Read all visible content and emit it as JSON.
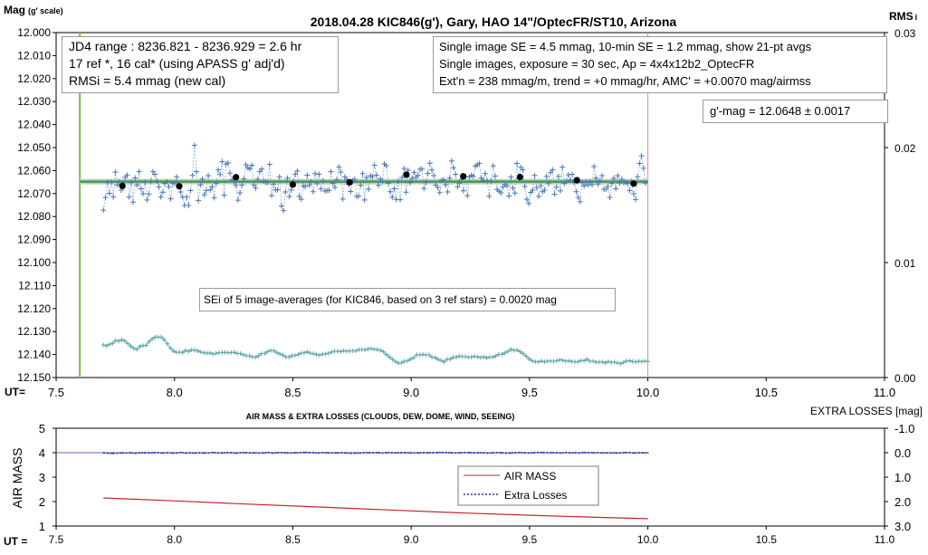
{
  "chart_data": [
    {
      "type": "scatter",
      "title": "2018.04.28  KIC846(g'),  Gary, HAO 14\"/OptecFR/ST10,  Arizona",
      "ylabel": "Mag",
      "ylabel_unit": "(g' scale)",
      "xlabel": "UT=",
      "y2label": "RMS",
      "y2label_suffix": "i",
      "xlim": [
        7.5,
        11.0
      ],
      "ylim": [
        12.15,
        12.0
      ],
      "y_inverted": true,
      "y2lim": [
        0.0,
        0.03
      ],
      "x_ticks": [
        "7.5",
        "8.0",
        "8.5",
        "9.0",
        "9.5",
        "10.0",
        "10.5",
        "11.0"
      ],
      "y_ticks": [
        "12.000",
        "12.010",
        "12.020",
        "12.030",
        "12.040",
        "12.050",
        "12.060",
        "12.070",
        "12.080",
        "12.090",
        "12.100",
        "12.110",
        "12.120",
        "12.130",
        "12.140",
        "12.150"
      ],
      "y2_ticks": [
        "0.03",
        "0.02",
        "0.01",
        "0.00"
      ],
      "grid": false,
      "colors": {
        "single": "#4a77b4",
        "single_line": "#8fb0d8",
        "avg": "#000000",
        "fit": "#3e9e4f",
        "fit_band": "#c8c8c8",
        "rms": "#5fa7a7",
        "start_line": "#7cc242",
        "end_line": "#f08a8a"
      },
      "start_marker_x": 7.6,
      "end_marker_x": 10.0,
      "fit_mag": 12.0648,
      "series": [
        {
          "style": "single",
          "x_start": 7.7,
          "x_end": 9.99,
          "count": 276,
          "values": [
            12.0772,
            12.0717,
            12.0652,
            12.0699,
            12.0651,
            12.0715,
            12.0607,
            12.0663,
            12.0649,
            12.0685,
            12.0653,
            12.0629,
            12.0619,
            12.0715,
            12.0652,
            12.0737,
            12.0632,
            12.0663,
            12.0605,
            12.0679,
            12.0701,
            12.065,
            12.0728,
            12.0702,
            12.0647,
            12.0605,
            12.0616,
            12.0646,
            12.0671,
            12.0715,
            12.0694,
            12.0656,
            12.0648,
            12.0671,
            12.0723,
            12.0656,
            12.0654,
            12.0627,
            12.0666,
            12.0693,
            12.0715,
            12.0752,
            12.0715,
            12.0752,
            12.0687,
            12.0621,
            12.049,
            12.0605,
            12.0731,
            12.0662,
            12.0637,
            12.0705,
            12.0687,
            12.0622,
            12.0684,
            12.067,
            12.0718,
            12.0656,
            12.0597,
            12.0617,
            12.0561,
            12.0707,
            12.0572,
            12.0567,
            12.0611,
            12.064,
            12.0649,
            12.0665,
            12.0729,
            12.0697,
            12.0663,
            12.0636,
            12.0575,
            12.0588,
            12.0593,
            12.0577,
            12.0663,
            12.0676,
            12.0638,
            12.0605,
            12.0593,
            12.0645,
            12.0651,
            12.0652,
            12.0573,
            12.0709,
            12.0659,
            12.0684,
            12.0683,
            12.0627,
            12.0754,
            12.0774,
            12.0693,
            12.0633,
            12.0713,
            12.0684,
            12.0647,
            12.0616,
            12.0602,
            12.0712,
            12.0725,
            12.0667,
            12.067,
            12.062,
            12.0664,
            12.0649,
            12.0692,
            12.0613,
            12.0657,
            12.0616,
            12.068,
            12.0644,
            12.0689,
            12.0687,
            12.0686,
            12.0605,
            12.0655,
            12.0673,
            12.064,
            12.0584,
            12.0607,
            12.0724,
            12.0627,
            12.0639,
            12.0661,
            12.0691,
            12.0643,
            12.0638,
            12.0712,
            12.0711,
            12.0664,
            12.0613,
            12.0728,
            12.063,
            12.0681,
            12.0622,
            12.0627,
            12.0577,
            12.062,
            12.0664,
            12.0636,
            12.0649,
            12.0571,
            12.0579,
            12.0655,
            12.0692,
            12.0716,
            12.0679,
            12.0726,
            12.0646,
            12.0727,
            12.063,
            12.0591,
            12.0694,
            12.0599,
            12.0653,
            12.0634,
            12.0608,
            12.0629,
            12.0621,
            12.0594,
            12.0594,
            12.0678,
            12.0652,
            12.0612,
            12.0568,
            12.0598,
            12.0622,
            12.0664,
            12.0673,
            12.0696,
            12.0642,
            12.064,
            12.0662,
            12.0693,
            12.0633,
            12.0558,
            12.0588,
            12.0616,
            12.0671,
            12.0655,
            12.0638,
            12.0688,
            12.0626,
            12.0709,
            12.0628,
            12.062,
            12.0625,
            12.0581,
            12.0576,
            12.0569,
            12.0632,
            12.0642,
            12.0613,
            12.0644,
            12.0712,
            12.0645,
            12.0579,
            12.0624,
            12.0682,
            12.069,
            12.0697,
            12.0671,
            12.066,
            12.0666,
            12.0711,
            12.0628,
            12.0676,
            12.0698,
            12.0569,
            12.0634,
            12.0586,
            12.0597,
            12.0669,
            12.0725,
            12.0743,
            12.0695,
            12.0685,
            12.0621,
            12.0674,
            12.0712,
            12.0666,
            12.0692,
            12.0685,
            12.0625,
            12.0657,
            12.0609,
            12.0597,
            12.0703,
            12.0672,
            12.0625,
            12.0688,
            12.0585,
            12.0656,
            12.0648,
            12.0618,
            12.0641,
            12.0616,
            12.0652,
            12.0692,
            12.0717,
            12.0735,
            12.0652,
            12.0667,
            12.0649,
            12.0663,
            12.0648,
            12.0662,
            12.0582,
            12.0633,
            12.0659,
            12.0644,
            12.0622,
            12.0681,
            12.0681,
            12.0669,
            12.0717,
            12.0655,
            12.0634,
            12.0679,
            12.0622,
            12.0654,
            12.0638,
            12.0653,
            12.0652,
            12.0656,
            12.0687,
            12.0647,
            12.0701,
            12.0726,
            12.0627,
            12.0569,
            12.0536,
            12.059,
            12.0654
          ]
        },
        {
          "style": "avg",
          "x": [
            7.78,
            8.02,
            8.26,
            8.5,
            8.74,
            8.98,
            9.22,
            9.46,
            9.7,
            9.94
          ],
          "values": [
            12.0667,
            12.0668,
            12.0629,
            12.0661,
            12.0651,
            12.0618,
            12.0625,
            12.0628,
            12.0642,
            12.0657
          ]
        },
        {
          "style": "rms",
          "x_start": 7.7,
          "x_end": 10.0,
          "count": 180,
          "values": [
            0.00283,
            0.00276,
            0.00288,
            0.00298,
            0.00323,
            0.00317,
            0.00329,
            0.00319,
            0.00296,
            0.00273,
            0.00254,
            0.00245,
            0.00272,
            0.00278,
            0.00281,
            0.00312,
            0.00336,
            0.00352,
            0.00351,
            0.00352,
            0.00329,
            0.00294,
            0.00257,
            0.00231,
            0.00219,
            0.0022,
            0.00218,
            0.00236,
            0.00227,
            0.00241,
            0.00238,
            0.00232,
            0.00221,
            0.00216,
            0.00212,
            0.00215,
            0.00205,
            0.0021,
            0.00217,
            0.00217,
            0.00219,
            0.00216,
            0.00218,
            0.00219,
            0.0021,
            0.00209,
            0.00198,
            0.0019,
            0.00189,
            0.0018,
            0.00177,
            0.0019,
            0.00209,
            0.00209,
            0.00225,
            0.00235,
            0.00234,
            0.00218,
            0.00205,
            0.00196,
            0.00178,
            0.00178,
            0.0019,
            0.00192,
            0.00199,
            0.00213,
            0.00215,
            0.00223,
            0.00212,
            0.00208,
            0.002,
            0.00195,
            0.00203,
            0.00206,
            0.00211,
            0.00221,
            0.00228,
            0.00229,
            0.00225,
            0.00234,
            0.00229,
            0.00231,
            0.00232,
            0.00231,
            0.00243,
            0.00244,
            0.00241,
            0.00248,
            0.00253,
            0.00246,
            0.00243,
            0.00237,
            0.00225,
            0.00201,
            0.00179,
            0.00158,
            0.0014,
            0.00125,
            0.00128,
            0.00142,
            0.00146,
            0.0016,
            0.00172,
            0.00198,
            0.00197,
            0.00201,
            0.00197,
            0.00198,
            0.00177,
            0.00174,
            0.00158,
            0.00149,
            0.00136,
            0.00158,
            0.0016,
            0.00175,
            0.00177,
            0.00186,
            0.00182,
            0.00182,
            0.00177,
            0.00178,
            0.00184,
            0.0018,
            0.00173,
            0.0018,
            0.0017,
            0.00178,
            0.00177,
            0.00188,
            0.00202,
            0.00201,
            0.00215,
            0.00227,
            0.00245,
            0.00235,
            0.00239,
            0.00224,
            0.00208,
            0.00184,
            0.00161,
            0.00144,
            0.00138,
            0.00136,
            0.00144,
            0.00137,
            0.00143,
            0.00144,
            0.00142,
            0.00145,
            0.00155,
            0.00151,
            0.00142,
            0.00146,
            0.0014,
            0.00137,
            0.00136,
            0.00149,
            0.00146,
            0.00159,
            0.00142,
            0.00143,
            0.00133,
            0.00136,
            0.00136,
            0.00127,
            0.0014,
            0.00132,
            0.00134,
            0.00127,
            0.00121,
            0.00132,
            0.00145,
            0.00146,
            0.00139,
            0.00136,
            0.00142,
            0.00139,
            0.00143,
            0.0014
          ]
        }
      ],
      "annotations": {
        "box1": [
          "JD4 range : 8236.821 - 8236.929 = 2.6  hr",
          "17 ref *, 16 cal* (using APASS g' adj'd)",
          "RMSi = 5.4 mmag (new cal)"
        ],
        "box2": [
          "Single image SE = 4.5 mmag, 10-min SE = 1.2 mmag, show  21-pt avgs",
          "Single images, exposure = 30 sec, Ap = 4x4x12b2_OptecFR",
          "Ext'n = 238 mmag/m, trend =  +0 mmag/hr, AMC' = +0.0070 mag/airmss"
        ],
        "box3": "g'-mag = 12.0648 ± 0.0017",
        "box4": "SEi of 5 image-averages (for KIC846, based on 3 ref stars) = 0.0020  mag"
      }
    },
    {
      "type": "line",
      "title": "AIR MASS & EXTRA LOSSES (CLOUDS, DEW, DOME, WIND, SEEING)",
      "ylabel": "AIR MASS",
      "y2label": "EXTRA LOSSES [mag]",
      "xlabel": "UT =",
      "xlim": [
        7.5,
        11.0
      ],
      "ylim": [
        1,
        5
      ],
      "y2lim": [
        3.0,
        -1.0
      ],
      "x_ticks": [
        "7.5",
        "8.0",
        "8.5",
        "9.0",
        "9.5",
        "10.0",
        "10.5",
        "11.0"
      ],
      "y_ticks": [
        "5",
        "4",
        "3",
        "2",
        "1"
      ],
      "y2_ticks": [
        "-1.0",
        "0.0",
        "1.0",
        "2.0",
        "3.0"
      ],
      "colors": {
        "air_mass": "#c0262d",
        "extra_losses": "#1f3a9a"
      },
      "series": [
        {
          "name": "AIR MASS",
          "x": [
            7.7,
            8.0,
            8.3,
            8.6,
            8.9,
            9.2,
            9.5,
            9.8,
            10.0
          ],
          "values": [
            2.15,
            2.03,
            1.9,
            1.78,
            1.66,
            1.54,
            1.44,
            1.35,
            1.3
          ]
        },
        {
          "name": "Extra Losses",
          "x_start": 7.7,
          "x_end": 10.0,
          "count": 120,
          "axis": "y2",
          "values": [
            0.005,
            0.023,
            0.026,
            0.021,
            0.007,
            0.01,
            0.003,
            0.026,
            0.003,
            0.003,
            0.008,
            -0.002,
            0.001,
            0.016,
            0.004,
            0.013,
            0.014,
            -0.012,
            0.018,
            0.007,
            0.015,
            0.009,
            0.01,
            0.011,
            -0.008,
            0.011,
            0.009,
            0.002,
            -0.001,
            0.021,
            -0.003,
            0.0,
            0.006,
            0.008,
            0.017,
            0.008,
            -0.008,
            0.019,
            -0.003,
            0.001,
            0.004,
            0.012,
            0.001,
            -0.001,
            -0.011,
            -0.002,
            0.001,
            0.011,
            -0.0,
            0.002,
            0.011,
            0.009,
            0.005,
            0.012,
            0.021,
            0.016,
            0.017,
            -0.004,
            0.0,
            0.007,
            -0.005,
            0.015,
            -0.005,
            0.004,
            0.009,
            0.003,
            0.002,
            0.007,
            0.01,
            0.008,
            -0.0,
            0.004,
            0.003,
            -0.007,
            -0.007,
            -0.007,
            0.003,
            0.012,
            0.001,
            -0.003,
            -0.002,
            0.006,
            0.005,
            0.003,
            0.013,
            0.009,
            -0.002,
            0.003,
            0.023,
            0.016,
            0.005,
            -0.008,
            0.007,
            0.011,
            0.003,
            -0.007,
            -0.003,
            -0.0,
            0.0,
            0.003,
            0.015,
            -0.008,
            0.007,
            0.001,
            0.012,
            -0.004,
            -0.003,
            0.001,
            0.005,
            0.006,
            0.009,
            0.011,
            0.008,
            0.012,
            -0.004,
            -0.001,
            0.014,
            -0.0,
            0.007,
            0.006
          ]
        }
      ]
    }
  ]
}
